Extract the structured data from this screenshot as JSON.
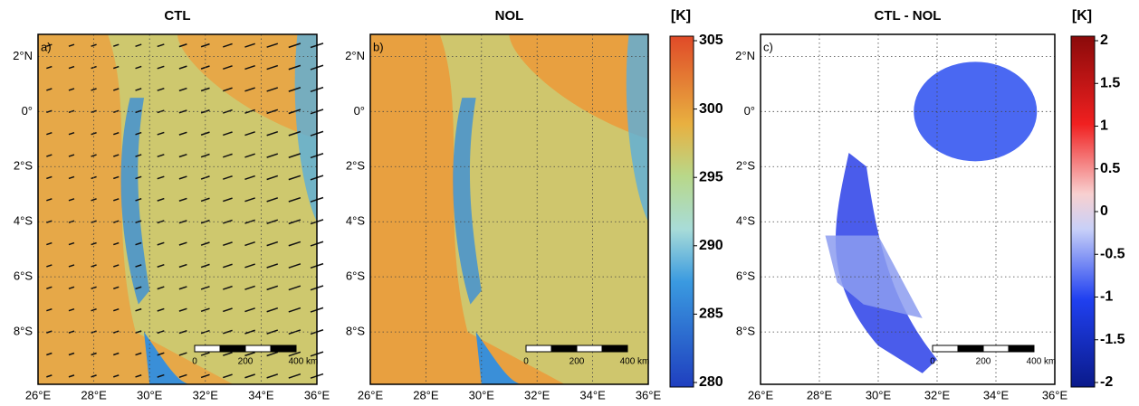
{
  "panels": [
    {
      "title": "CTL",
      "label": "a)"
    },
    {
      "title": "NOL",
      "label": "b)"
    },
    {
      "title": "CTL - NOL",
      "label": "c)"
    }
  ],
  "xlim": [
    26,
    36
  ],
  "ylim": [
    -9.9,
    2.8
  ],
  "xticks": [
    {
      "value": 26,
      "label": "26°E"
    },
    {
      "value": 28,
      "label": "28°E"
    },
    {
      "value": 30,
      "label": "30°E"
    },
    {
      "value": 32,
      "label": "32°E"
    },
    {
      "value": 34,
      "label": "34°E"
    },
    {
      "value": 36,
      "label": "36°E"
    }
  ],
  "yticks": [
    {
      "value": 2,
      "label": "2°N"
    },
    {
      "value": 0,
      "label": "0°"
    },
    {
      "value": -2,
      "label": "2°S"
    },
    {
      "value": -4,
      "label": "4°S"
    },
    {
      "value": -6,
      "label": "6°S"
    },
    {
      "value": -8,
      "label": "8°S"
    }
  ],
  "scale_bar": {
    "labels": [
      "0",
      "200",
      "400 km"
    ]
  },
  "colorbars": [
    {
      "unit": "[K]",
      "lim": [
        280,
        305
      ],
      "ticks": [
        305,
        300,
        295,
        290,
        285,
        280
      ]
    },
    {
      "unit": "[K]",
      "lim": [
        -2,
        2
      ],
      "ticks": [
        2,
        1.5,
        1,
        0.5,
        0,
        -0.5,
        -1,
        -1.5,
        -2
      ]
    }
  ]
}
